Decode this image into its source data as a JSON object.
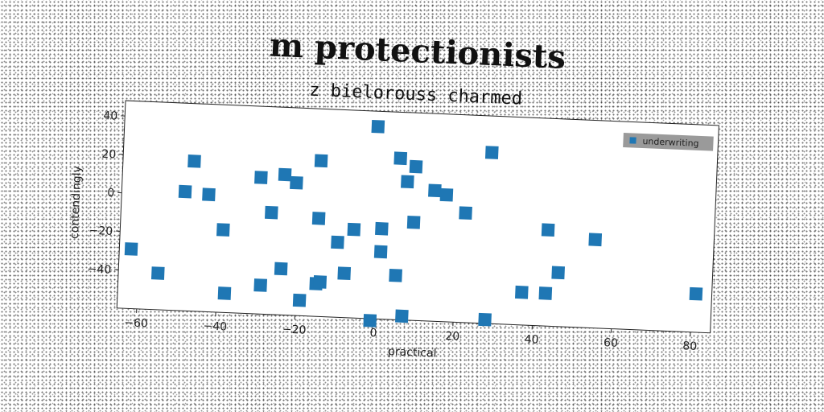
{
  "chart_data": {
    "type": "scatter",
    "title": "m protectionists",
    "subtitle": "z bielorouss charmed",
    "xlabel": "practical",
    "ylabel": "contendingly",
    "xlim": [
      -65,
      85
    ],
    "ylim": [
      -60,
      48
    ],
    "xticks": [
      -60,
      -40,
      -20,
      0,
      20,
      40,
      60,
      80
    ],
    "yticks": [
      -40,
      -20,
      0,
      20,
      40
    ],
    "legend_position": "top-right",
    "grid": false,
    "series": [
      {
        "name": "underwriting",
        "color": "#1f77b4",
        "marker": "square",
        "points": [
          {
            "x": -62,
            "y": -29
          },
          {
            "x": -55,
            "y": -41
          },
          {
            "x": -49,
            "y": 2
          },
          {
            "x": -47,
            "y": 18
          },
          {
            "x": -43,
            "y": 1
          },
          {
            "x": -39,
            "y": -17
          },
          {
            "x": -38,
            "y": -50
          },
          {
            "x": -30,
            "y": 11
          },
          {
            "x": -29,
            "y": -45
          },
          {
            "x": -27,
            "y": -7
          },
          {
            "x": -24,
            "y": 13
          },
          {
            "x": -24,
            "y": -36
          },
          {
            "x": -21,
            "y": 9
          },
          {
            "x": -19,
            "y": -52
          },
          {
            "x": -15,
            "y": 21
          },
          {
            "x": -15,
            "y": -9
          },
          {
            "x": -15,
            "y": -43
          },
          {
            "x": -14,
            "y": -42
          },
          {
            "x": -10,
            "y": -21
          },
          {
            "x": -8,
            "y": -37
          },
          {
            "x": -6,
            "y": -14
          },
          {
            "x": -1,
            "y": 40
          },
          {
            "x": -1,
            "y": -61
          },
          {
            "x": 1,
            "y": -13
          },
          {
            "x": 1,
            "y": -25
          },
          {
            "x": 5,
            "y": 24
          },
          {
            "x": 5,
            "y": -37
          },
          {
            "x": 7,
            "y": 12
          },
          {
            "x": 7,
            "y": -58
          },
          {
            "x": 9,
            "y": 20
          },
          {
            "x": 9,
            "y": -9
          },
          {
            "x": 14,
            "y": 8
          },
          {
            "x": 17,
            "y": 6
          },
          {
            "x": 22,
            "y": -3
          },
          {
            "x": 28,
            "y": 29
          },
          {
            "x": 28,
            "y": -58
          },
          {
            "x": 37,
            "y": -43
          },
          {
            "x": 43,
            "y": -10
          },
          {
            "x": 43,
            "y": -43
          },
          {
            "x": 46,
            "y": -32
          },
          {
            "x": 55,
            "y": -14
          },
          {
            "x": 81,
            "y": -40
          }
        ]
      }
    ]
  }
}
